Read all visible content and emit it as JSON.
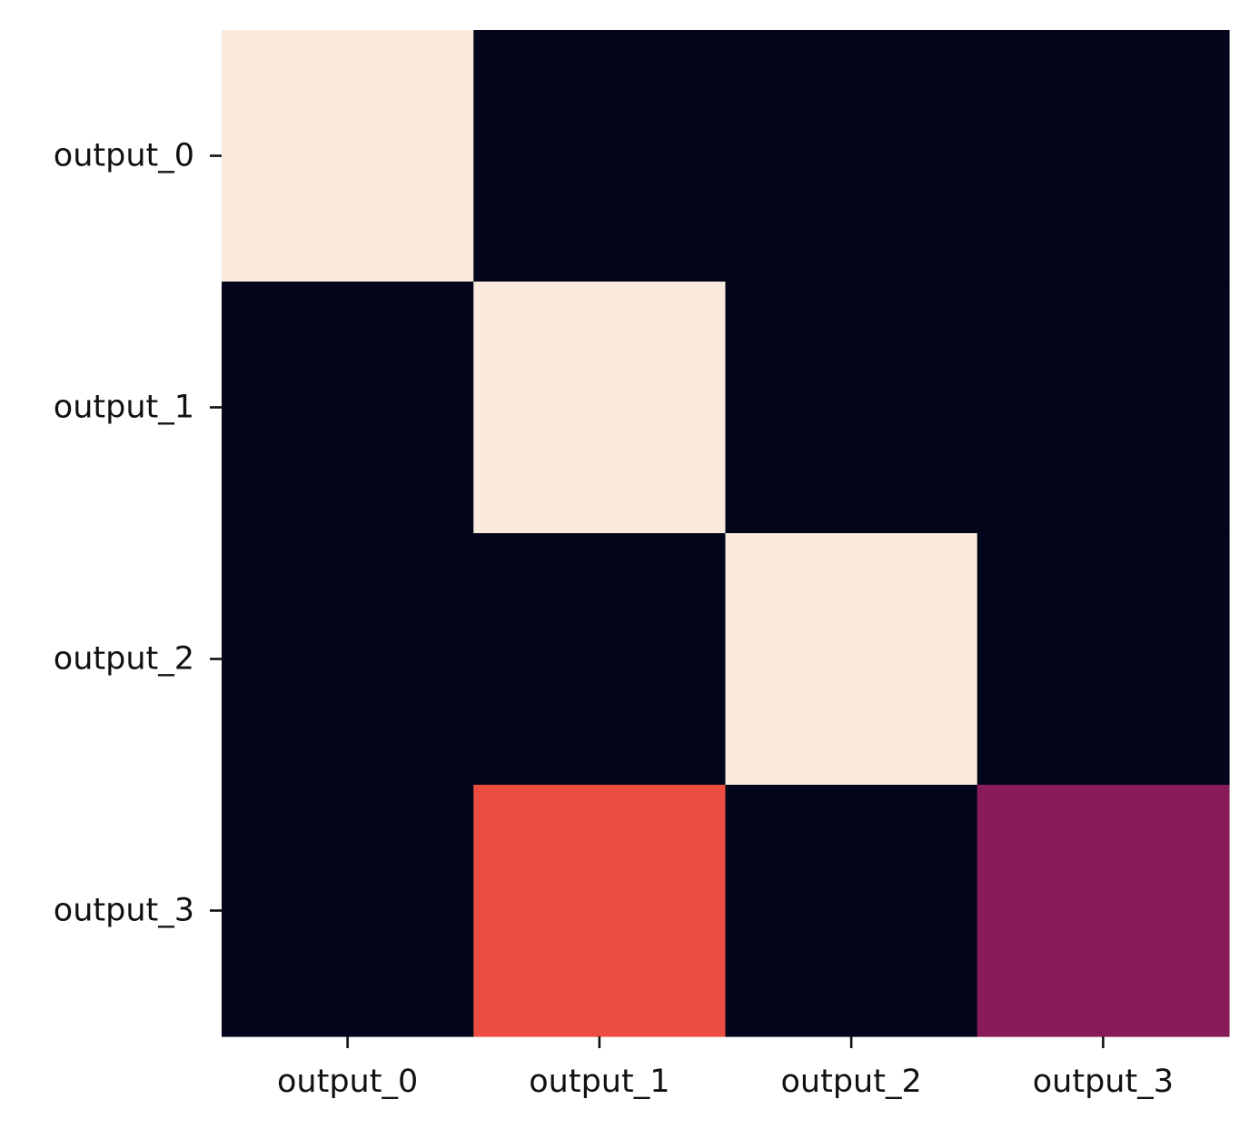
{
  "chart_data": {
    "type": "heatmap",
    "title": "",
    "xlabel": "",
    "ylabel": "",
    "x_categories": [
      "output_0",
      "output_1",
      "output_2",
      "output_3"
    ],
    "y_categories": [
      "output_0",
      "output_1",
      "output_2",
      "output_3"
    ],
    "values": [
      [
        1.0,
        0.0,
        0.0,
        0.0
      ],
      [
        0.0,
        1.0,
        0.0,
        0.0
      ],
      [
        0.0,
        0.0,
        1.0,
        0.0
      ],
      [
        0.0,
        0.6,
        0.0,
        0.35
      ]
    ],
    "vmin": 0.0,
    "vmax": 1.0,
    "colormap": "rocket",
    "colorbar": false,
    "grid": false
  }
}
